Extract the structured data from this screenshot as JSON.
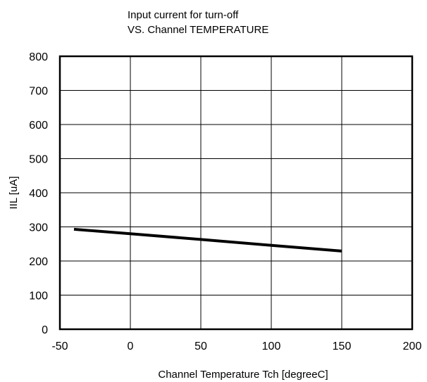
{
  "chart_data": {
    "type": "line",
    "title_lines": [
      "Input current for turn-off",
      "VS. Channel TEMPERATURE"
    ],
    "xlabel": "Channel Temperature   Tch [degreeC]",
    "ylabel": "IIL [uA]",
    "xlim": [
      -50,
      200
    ],
    "ylim": [
      0,
      800
    ],
    "x_ticks": [
      -50,
      0,
      50,
      100,
      150,
      200
    ],
    "y_ticks": [
      0,
      100,
      200,
      300,
      400,
      500,
      600,
      700,
      800
    ],
    "x_tick_labels": [
      "-50",
      "0",
      "50",
      "100",
      "150",
      "200"
    ],
    "y_tick_labels": [
      "0",
      "100",
      "200",
      "300",
      "400",
      "500",
      "600",
      "700",
      "800"
    ],
    "grid": true,
    "series": [
      {
        "color": "#000000",
        "points": [
          {
            "x": -40,
            "y": 293
          },
          {
            "x": 0,
            "y": 280
          },
          {
            "x": 50,
            "y": 263
          },
          {
            "x": 100,
            "y": 246
          },
          {
            "x": 150,
            "y": 229
          }
        ]
      }
    ]
  }
}
